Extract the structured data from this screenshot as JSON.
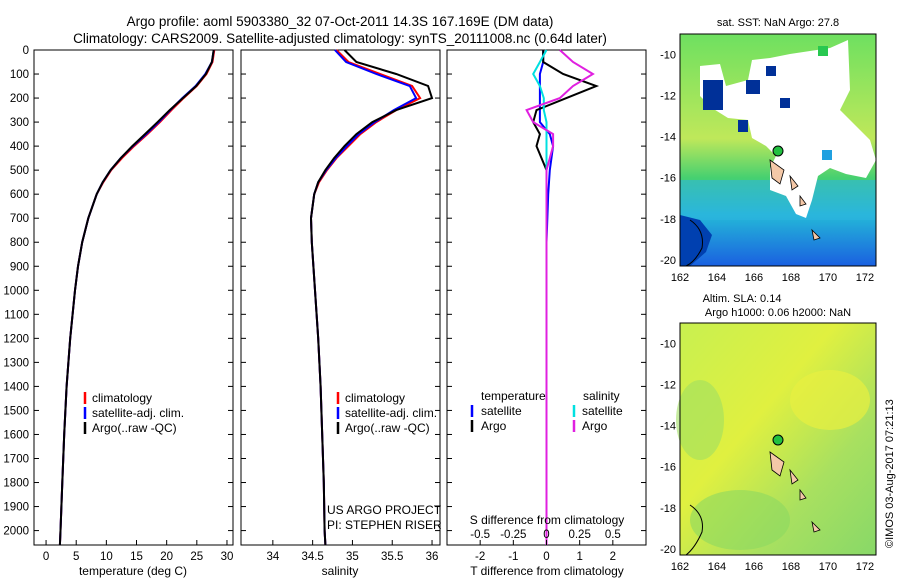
{
  "title": {
    "line1": "Argo profile: aoml 5903380_32 07-Oct-2011 14.3S 167.169E (DM data)",
    "line2": "Climatology: CARS2009. Satellite-adjusted climatology: synTS_20111008.nc (0.64d later)"
  },
  "colors": {
    "climatology": "#ff0000",
    "satellite": "#0000ff",
    "argo": "#000000",
    "sat_s": "#00e0e0",
    "argo_s": "#e020e0"
  },
  "depth_ticks": [
    "0",
    "100",
    "200",
    "300",
    "400",
    "500",
    "600",
    "700",
    "800",
    "900",
    "1000",
    "1100",
    "1200",
    "1300",
    "1400",
    "1500",
    "1600",
    "1700",
    "1800",
    "1900",
    "2000"
  ],
  "legend": {
    "climatology": "climatology",
    "satellite": "satellite-adj. clim.",
    "argo": "Argo(..raw -QC)"
  },
  "diff_legend": {
    "temperature": "temperature",
    "salinity": "salinity",
    "satellite": "satellite",
    "argo": "Argo"
  },
  "credits": {
    "line1": "US ARGO PROJECT",
    "line2": "PI: STEPHEN RISER"
  },
  "map_sst": {
    "title": "sat. SST: NaN Argo: 27.8"
  },
  "map_sla": {
    "title1": "Altim. SLA: 0.14",
    "title2": "Argo h1000: 0.06 h2000: NaN"
  },
  "map_lon_ticks": [
    "162",
    "164",
    "166",
    "168",
    "170",
    "172"
  ],
  "map_lat_ticks": [
    "-10",
    "-12",
    "-14",
    "-16",
    "-18",
    "-20"
  ],
  "stamp": "©IMOS 03-Aug-2017 07:21:13",
  "chart_data": [
    {
      "type": "line",
      "name": "temperature-panel",
      "xlabel": "temperature (deg C)",
      "xlim": [
        -2,
        31
      ],
      "ylim": [
        2060,
        0
      ],
      "xticks": [
        "0",
        "5",
        "10",
        "15",
        "20",
        "25",
        "30"
      ],
      "depth": [
        0,
        50,
        100,
        150,
        200,
        250,
        300,
        350,
        400,
        450,
        500,
        550,
        600,
        700,
        800,
        900,
        1000,
        1200,
        1400,
        1600,
        1800,
        2000,
        2060
      ],
      "series": [
        {
          "name": "climatology",
          "values": [
            27.9,
            27.6,
            26.6,
            25.0,
            22.8,
            20.8,
            18.9,
            16.8,
            14.6,
            12.6,
            10.8,
            9.5,
            8.4,
            7.0,
            6.0,
            5.3,
            4.8,
            4.0,
            3.4,
            3.0,
            2.7,
            2.4,
            2.3
          ]
        },
        {
          "name": "satellite",
          "values": [
            27.8,
            27.5,
            26.4,
            24.8,
            22.6,
            20.6,
            18.7,
            16.6,
            14.4,
            12.4,
            10.7,
            9.4,
            8.4,
            7.0,
            6.0,
            5.3,
            4.8,
            4.0,
            3.4,
            3.0,
            2.7,
            2.4,
            2.3
          ]
        },
        {
          "name": "argo",
          "values": [
            27.8,
            27.5,
            26.5,
            24.9,
            22.7,
            20.5,
            18.5,
            16.4,
            14.3,
            12.4,
            10.7,
            9.4,
            8.4,
            7.0,
            6.0,
            5.3,
            4.8,
            4.0,
            3.4,
            3.0,
            2.7,
            2.4,
            2.3
          ]
        }
      ]
    },
    {
      "type": "line",
      "name": "salinity-panel",
      "xlabel": "salinity",
      "xlim": [
        33.6,
        36.1
      ],
      "ylim": [
        2060,
        0
      ],
      "xticks": [
        "34",
        "34.5",
        "35",
        "35.5",
        "36"
      ],
      "depth": [
        0,
        50,
        100,
        150,
        200,
        250,
        300,
        350,
        400,
        450,
        500,
        550,
        600,
        700,
        800,
        900,
        1000,
        1200,
        1400,
        1600,
        1800,
        2000,
        2060
      ],
      "series": [
        {
          "name": "climatology",
          "values": [
            34.8,
            34.95,
            35.35,
            35.75,
            35.85,
            35.55,
            35.3,
            35.1,
            34.95,
            34.8,
            34.68,
            34.58,
            34.52,
            34.48,
            34.49,
            34.51,
            34.53,
            34.57,
            34.6,
            34.62,
            34.64,
            34.65,
            34.66
          ]
        },
        {
          "name": "satellite",
          "values": [
            34.78,
            34.92,
            35.3,
            35.72,
            35.8,
            35.52,
            35.28,
            35.08,
            34.93,
            34.79,
            34.67,
            34.57,
            34.52,
            34.48,
            34.49,
            34.51,
            34.53,
            34.57,
            34.6,
            34.62,
            34.64,
            34.65,
            34.66
          ]
        },
        {
          "name": "argo",
          "values": [
            34.9,
            35.05,
            35.55,
            35.95,
            36.0,
            35.55,
            35.25,
            35.05,
            34.9,
            34.77,
            34.66,
            34.57,
            34.52,
            34.48,
            34.49,
            34.51,
            34.53,
            34.57,
            34.6,
            34.62,
            34.64,
            34.65,
            34.66
          ]
        }
      ]
    },
    {
      "type": "line",
      "name": "difference-panel",
      "xlabel": "T difference from climatology",
      "top_label": "S difference from climatology",
      "xlim": [
        -3,
        3
      ],
      "ylim": [
        2060,
        0
      ],
      "xticks": [
        "-2",
        "-1",
        "0",
        "1",
        "2"
      ],
      "s_ticks": [
        "-0.5",
        "-0.25",
        "0",
        "0.25",
        "0.5"
      ],
      "depth": [
        0,
        50,
        100,
        150,
        200,
        250,
        300,
        350,
        400,
        500,
        600,
        800,
        1000,
        1500,
        2060
      ],
      "series": [
        {
          "name": "T satellite",
          "values": [
            -0.1,
            -0.1,
            -0.2,
            -0.2,
            -0.2,
            -0.2,
            -0.2,
            0.1,
            0.2,
            0.1,
            0.05,
            0.0,
            0.0,
            0.0,
            0.0
          ]
        },
        {
          "name": "T argo",
          "values": [
            -0.1,
            -0.1,
            0.5,
            1.5,
            0.6,
            -0.3,
            -0.4,
            -0.2,
            -0.3,
            0.0,
            0.0,
            0.0,
            0.0,
            0.0,
            0.0
          ]
        },
        {
          "name": "S satellite",
          "values": [
            0.0,
            -0.05,
            -0.1,
            -0.05,
            -0.02,
            -0.02,
            0.0,
            0.0,
            0.0,
            0.0,
            0.0,
            0.0,
            0.0,
            0.0,
            0.0
          ]
        },
        {
          "name": "S argo",
          "values": [
            0.1,
            0.2,
            0.35,
            0.2,
            0.1,
            -0.15,
            -0.1,
            0.05,
            0.05,
            0.0,
            0.0,
            0.0,
            0.0,
            0.0,
            0.0
          ]
        }
      ]
    }
  ]
}
